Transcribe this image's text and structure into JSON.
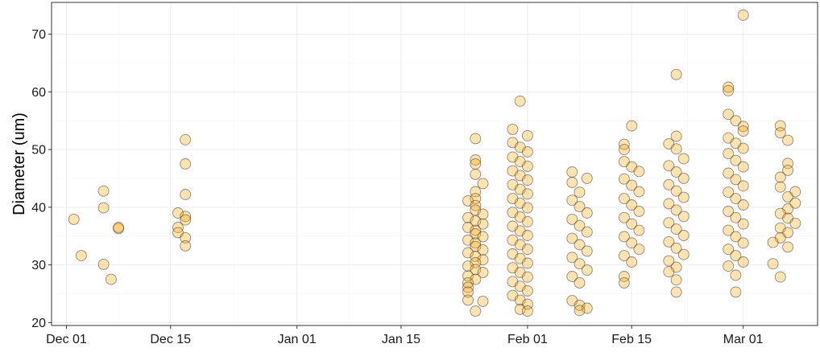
{
  "chart_data": {
    "type": "scatter",
    "title": "",
    "xlabel": "",
    "ylabel": "Diameter (um)",
    "x_axis": {
      "kind": "date",
      "min": "2015-11-29",
      "max": "2016-03-11",
      "tick_values": [
        "2015-12-01",
        "2015-12-15",
        "2016-01-01",
        "2016-01-15",
        "2016-02-01",
        "2016-02-15",
        "2016-03-01"
      ],
      "tick_labels": [
        "Dec 01",
        "Dec 15",
        "Jan 01",
        "Jan 15",
        "Feb 01",
        "Feb 15",
        "Mar 01"
      ]
    },
    "y_axis": {
      "min": 19.5,
      "max": 75.5,
      "ticks": [
        20,
        30,
        40,
        50,
        60,
        70
      ]
    },
    "grid": true,
    "point_color": "#FFA500",
    "point_opacity": 0.3,
    "point_stroke": "#333333",
    "series": [
      {
        "points": [
          [
            "2015-12-02",
            37.9
          ],
          [
            "2015-12-03",
            31.6
          ],
          [
            "2015-12-06",
            42.8
          ],
          [
            "2015-12-06",
            39.9
          ],
          [
            "2015-12-06",
            30.1
          ],
          [
            "2015-12-07",
            27.5
          ],
          [
            "2015-12-08",
            36.3
          ],
          [
            "2015-12-08",
            36.5
          ],
          [
            "2015-12-17",
            51.7
          ],
          [
            "2015-12-17",
            47.5
          ],
          [
            "2015-12-17",
            42.2
          ],
          [
            "2015-12-16",
            39.0
          ],
          [
            "2015-12-17",
            38.4
          ],
          [
            "2015-12-17",
            37.8
          ],
          [
            "2015-12-16",
            36.5
          ],
          [
            "2015-12-16",
            35.6
          ],
          [
            "2015-12-17",
            34.7
          ],
          [
            "2015-12-17",
            33.3
          ],
          [
            "2016-01-25",
            51.9
          ],
          [
            "2016-01-25",
            48.2
          ],
          [
            "2016-01-25",
            47.5
          ],
          [
            "2016-01-25",
            45.7
          ],
          [
            "2016-01-26",
            44.1
          ],
          [
            "2016-01-25",
            42.7
          ],
          [
            "2016-01-25",
            41.5
          ],
          [
            "2016-01-24",
            41.1
          ],
          [
            "2016-01-25",
            40.3
          ],
          [
            "2016-01-25",
            39.5
          ],
          [
            "2016-01-26",
            38.8
          ],
          [
            "2016-01-24",
            38.2
          ],
          [
            "2016-01-25",
            37.6
          ],
          [
            "2016-01-26",
            37.1
          ],
          [
            "2016-01-24",
            36.5
          ],
          [
            "2016-01-25",
            36.0
          ],
          [
            "2016-01-25",
            35.4
          ],
          [
            "2016-01-26",
            34.9
          ],
          [
            "2016-01-24",
            34.3
          ],
          [
            "2016-01-25",
            33.8
          ],
          [
            "2016-01-25",
            33.2
          ],
          [
            "2016-01-26",
            32.6
          ],
          [
            "2016-01-24",
            32.1
          ],
          [
            "2016-01-25",
            31.5
          ],
          [
            "2016-01-26",
            30.9
          ],
          [
            "2016-01-25",
            30.4
          ],
          [
            "2016-01-24",
            29.8
          ],
          [
            "2016-01-25",
            29.2
          ],
          [
            "2016-01-26",
            28.7
          ],
          [
            "2016-01-24",
            28.1
          ],
          [
            "2016-01-25",
            27.5
          ],
          [
            "2016-01-24",
            26.9
          ],
          [
            "2016-01-24",
            26.1
          ],
          [
            "2016-01-24",
            25.3
          ],
          [
            "2016-01-24",
            23.9
          ],
          [
            "2016-01-26",
            23.7
          ],
          [
            "2016-01-25",
            22.0
          ],
          [
            "2016-01-31",
            58.4
          ],
          [
            "2016-01-30",
            53.5
          ],
          [
            "2016-02-01",
            52.4
          ],
          [
            "2016-01-30",
            51.2
          ],
          [
            "2016-01-31",
            50.4
          ],
          [
            "2016-02-01",
            49.6
          ],
          [
            "2016-01-30",
            48.7
          ],
          [
            "2016-01-31",
            47.9
          ],
          [
            "2016-02-01",
            47.1
          ],
          [
            "2016-01-30",
            46.3
          ],
          [
            "2016-01-31",
            45.5
          ],
          [
            "2016-02-01",
            44.7
          ],
          [
            "2016-01-30",
            43.9
          ],
          [
            "2016-01-31",
            43.1
          ],
          [
            "2016-02-01",
            42.3
          ],
          [
            "2016-01-30",
            41.5
          ],
          [
            "2016-01-31",
            40.7
          ],
          [
            "2016-02-01",
            39.9
          ],
          [
            "2016-01-30",
            39.1
          ],
          [
            "2016-01-31",
            38.3
          ],
          [
            "2016-02-01",
            37.5
          ],
          [
            "2016-01-30",
            36.7
          ],
          [
            "2016-01-31",
            35.9
          ],
          [
            "2016-02-01",
            35.1
          ],
          [
            "2016-01-30",
            34.3
          ],
          [
            "2016-01-31",
            33.5
          ],
          [
            "2016-02-01",
            32.7
          ],
          [
            "2016-01-30",
            31.9
          ],
          [
            "2016-01-31",
            31.1
          ],
          [
            "2016-02-01",
            30.3
          ],
          [
            "2016-01-30",
            29.5
          ],
          [
            "2016-01-31",
            28.7
          ],
          [
            "2016-02-01",
            27.9
          ],
          [
            "2016-01-30",
            27.1
          ],
          [
            "2016-01-31",
            26.3
          ],
          [
            "2016-02-01",
            25.5
          ],
          [
            "2016-01-30",
            24.7
          ],
          [
            "2016-01-31",
            23.9
          ],
          [
            "2016-02-01",
            23.2
          ],
          [
            "2016-01-31",
            22.3
          ],
          [
            "2016-02-01",
            22.0
          ],
          [
            "2016-02-07",
            46.1
          ],
          [
            "2016-02-09",
            45.0
          ],
          [
            "2016-02-07",
            44.3
          ],
          [
            "2016-02-08",
            42.6
          ],
          [
            "2016-02-07",
            41.2
          ],
          [
            "2016-02-08",
            40.1
          ],
          [
            "2016-02-09",
            39.0
          ],
          [
            "2016-02-07",
            37.9
          ],
          [
            "2016-02-08",
            36.8
          ],
          [
            "2016-02-09",
            35.7
          ],
          [
            "2016-02-07",
            34.6
          ],
          [
            "2016-02-08",
            33.5
          ],
          [
            "2016-02-09",
            32.4
          ],
          [
            "2016-02-07",
            31.3
          ],
          [
            "2016-02-08",
            30.2
          ],
          [
            "2016-02-09",
            29.1
          ],
          [
            "2016-02-07",
            28.0
          ],
          [
            "2016-02-08",
            26.9
          ],
          [
            "2016-02-07",
            23.8
          ],
          [
            "2016-02-08",
            23.0
          ],
          [
            "2016-02-09",
            22.5
          ],
          [
            "2016-02-08",
            22.1
          ],
          [
            "2016-02-15",
            54.1
          ],
          [
            "2016-02-14",
            50.9
          ],
          [
            "2016-02-14",
            50.0
          ],
          [
            "2016-02-14",
            47.9
          ],
          [
            "2016-02-15",
            47.0
          ],
          [
            "2016-02-16",
            46.2
          ],
          [
            "2016-02-14",
            44.9
          ],
          [
            "2016-02-15",
            43.8
          ],
          [
            "2016-02-16",
            42.7
          ],
          [
            "2016-02-14",
            41.5
          ],
          [
            "2016-02-15",
            40.4
          ],
          [
            "2016-02-16",
            39.3
          ],
          [
            "2016-02-14",
            38.2
          ],
          [
            "2016-02-15",
            37.1
          ],
          [
            "2016-02-16",
            36.0
          ],
          [
            "2016-02-14",
            34.9
          ],
          [
            "2016-02-15",
            33.8
          ],
          [
            "2016-02-16",
            32.7
          ],
          [
            "2016-02-14",
            31.6
          ],
          [
            "2016-02-15",
            30.5
          ],
          [
            "2016-02-14",
            28.0
          ],
          [
            "2016-02-14",
            26.9
          ],
          [
            "2016-02-21",
            63.0
          ],
          [
            "2016-02-21",
            52.3
          ],
          [
            "2016-02-20",
            51.0
          ],
          [
            "2016-02-21",
            50.1
          ],
          [
            "2016-02-22",
            48.4
          ],
          [
            "2016-02-20",
            47.2
          ],
          [
            "2016-02-21",
            46.1
          ],
          [
            "2016-02-22",
            45.0
          ],
          [
            "2016-02-20",
            43.9
          ],
          [
            "2016-02-21",
            42.8
          ],
          [
            "2016-02-22",
            41.7
          ],
          [
            "2016-02-20",
            40.6
          ],
          [
            "2016-02-21",
            39.5
          ],
          [
            "2016-02-22",
            38.4
          ],
          [
            "2016-02-20",
            37.3
          ],
          [
            "2016-02-21",
            36.2
          ],
          [
            "2016-02-22",
            35.1
          ],
          [
            "2016-02-20",
            34.0
          ],
          [
            "2016-02-21",
            32.9
          ],
          [
            "2016-02-22",
            31.8
          ],
          [
            "2016-02-20",
            30.7
          ],
          [
            "2016-02-21",
            29.6
          ],
          [
            "2016-02-20",
            28.8
          ],
          [
            "2016-02-21",
            27.4
          ],
          [
            "2016-02-21",
            25.3
          ],
          [
            "2016-03-01",
            73.3
          ],
          [
            "2016-02-28",
            60.8
          ],
          [
            "2016-02-28",
            60.2
          ],
          [
            "2016-02-28",
            56.1
          ],
          [
            "2016-02-29",
            55.0
          ],
          [
            "2016-03-01",
            54.0
          ],
          [
            "2016-03-01",
            53.2
          ],
          [
            "2016-02-28",
            52.0
          ],
          [
            "2016-02-29",
            51.1
          ],
          [
            "2016-03-01",
            50.2
          ],
          [
            "2016-02-28",
            49.3
          ],
          [
            "2016-02-29",
            48.1
          ],
          [
            "2016-03-01",
            47.0
          ],
          [
            "2016-02-28",
            45.9
          ],
          [
            "2016-02-29",
            44.8
          ],
          [
            "2016-03-01",
            43.7
          ],
          [
            "2016-02-28",
            42.6
          ],
          [
            "2016-02-29",
            41.5
          ],
          [
            "2016-03-01",
            40.4
          ],
          [
            "2016-02-28",
            39.3
          ],
          [
            "2016-02-29",
            38.2
          ],
          [
            "2016-03-01",
            37.1
          ],
          [
            "2016-02-28",
            36.0
          ],
          [
            "2016-02-29",
            34.9
          ],
          [
            "2016-03-01",
            33.8
          ],
          [
            "2016-02-28",
            32.7
          ],
          [
            "2016-02-29",
            31.6
          ],
          [
            "2016-03-01",
            30.5
          ],
          [
            "2016-02-28",
            29.8
          ],
          [
            "2016-02-29",
            28.2
          ],
          [
            "2016-02-29",
            25.3
          ],
          [
            "2016-03-06",
            54.1
          ],
          [
            "2016-03-06",
            52.9
          ],
          [
            "2016-03-07",
            51.6
          ],
          [
            "2016-03-07",
            47.6
          ],
          [
            "2016-03-07",
            46.4
          ],
          [
            "2016-03-06",
            45.2
          ],
          [
            "2016-03-06",
            43.5
          ],
          [
            "2016-03-08",
            42.7
          ],
          [
            "2016-03-07",
            41.8
          ],
          [
            "2016-03-08",
            40.7
          ],
          [
            "2016-03-07",
            39.7
          ],
          [
            "2016-03-06",
            38.9
          ],
          [
            "2016-03-07",
            38.1
          ],
          [
            "2016-03-08",
            37.2
          ],
          [
            "2016-03-06",
            36.4
          ],
          [
            "2016-03-07",
            35.6
          ],
          [
            "2016-03-06",
            34.7
          ],
          [
            "2016-03-05",
            33.9
          ],
          [
            "2016-03-07",
            33.1
          ],
          [
            "2016-03-05",
            30.2
          ],
          [
            "2016-03-06",
            27.9
          ]
        ]
      }
    ]
  }
}
